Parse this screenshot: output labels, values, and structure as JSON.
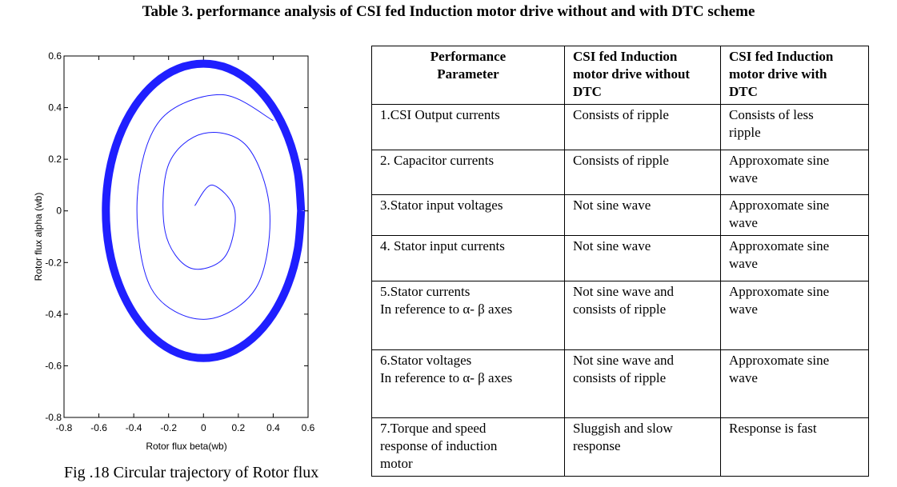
{
  "header": {
    "title": "Table 3. performance analysis of CSI fed Induction motor drive without and with DTC scheme"
  },
  "chart_data": {
    "type": "line",
    "xlabel": "Rotor flux beta(wb)",
    "ylabel": "Rotor flux alpha (wb)",
    "caption": "Fig .18 Circular trajectory of  Rotor  flux",
    "xlim": [
      -0.8,
      0.6
    ],
    "ylim": [
      -0.8,
      0.6
    ],
    "xticks": [
      -0.8,
      -0.6,
      -0.4,
      -0.2,
      0,
      0.2,
      0.4,
      0.6
    ],
    "yticks": [
      -0.8,
      -0.6,
      -0.4,
      -0.2,
      0,
      0.2,
      0.4,
      0.6
    ],
    "series": [
      {
        "color": "#1f1fff",
        "x": [
          0.56,
          0.541,
          0.485,
          0.396,
          0.28,
          0.145,
          0,
          -0.145,
          -0.28,
          -0.396,
          -0.485,
          -0.541,
          -0.56,
          -0.541,
          -0.485,
          -0.396,
          -0.28,
          -0.145,
          0,
          0.145,
          0.28,
          0.396,
          0.485,
          0.541,
          0.56
        ],
        "values": [
          0,
          0.148,
          0.285,
          0.403,
          0.494,
          0.551,
          0.57,
          0.551,
          0.494,
          0.403,
          0.285,
          0.148,
          0,
          -0.148,
          -0.285,
          -0.403,
          -0.494,
          -0.551,
          -0.57,
          -0.551,
          -0.494,
          -0.403,
          -0.285,
          -0.148,
          0
        ]
      },
      {
        "color": "#1f1fff",
        "x": [
          0.4,
          0.1,
          -0.25,
          -0.38,
          -0.3,
          0,
          0.3,
          0.38,
          0.25,
          0,
          -0.2,
          -0.22,
          -0.08,
          0.12,
          0.18,
          0.05,
          -0.05
        ],
        "values": [
          0.35,
          0.45,
          0.35,
          0.05,
          -0.3,
          -0.42,
          -0.3,
          0,
          0.25,
          0.3,
          0.18,
          -0.08,
          -0.22,
          -0.18,
          0,
          0.1,
          0.02
        ]
      }
    ]
  },
  "table": {
    "rows": [
      [
        "Performance\nParameter",
        "CSI fed Induction\nmotor drive without\nDTC",
        "CSI fed Induction\nmotor drive with\nDTC"
      ],
      [
        "1.CSI Output currents",
        "Consists of ripple",
        "Consists of less\nripple"
      ],
      [
        "2. Capacitor currents",
        "Consists of ripple",
        "Approxomate sine\nwave"
      ],
      [
        "3.Stator input voltages",
        "Not sine wave",
        "Approxomate sine\nwave"
      ],
      [
        "4. Stator input currents",
        "Not sine wave",
        "Approxomate sine\nwave"
      ],
      [
        "5.Stator  currents\nIn reference to α- β axes",
        "Not sine wave and\nconsists of ripple",
        "Approxomate sine\nwave"
      ],
      [
        "6.Stator voltages\nIn reference to α- β axes",
        "Not sine wave and\nconsists of ripple",
        "Approxomate sine\nwave"
      ],
      [
        "7.Torque and speed\nresponse of induction\nmotor",
        "Sluggish and slow\nresponse",
        "Response is fast"
      ]
    ]
  }
}
